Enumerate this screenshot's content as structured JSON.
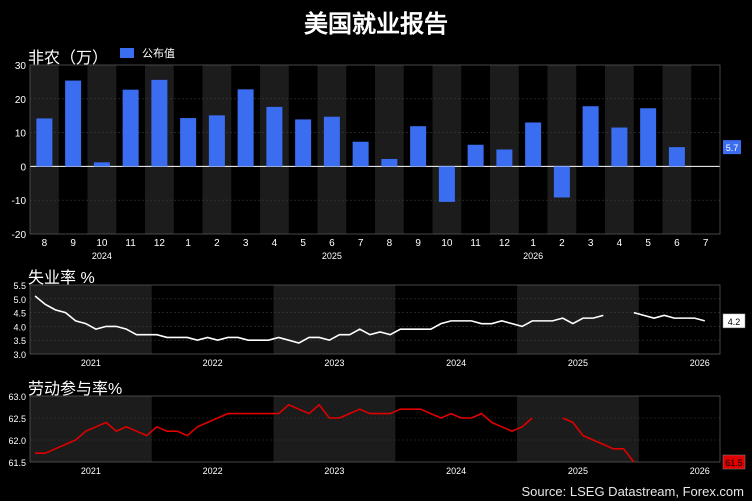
{
  "title": "美国就业报告",
  "source": "Source: LSEG Datastream, Forex.com",
  "colors": {
    "bg": "#000000",
    "panel_band": "#1c1c1c",
    "grid": "#3a3a3a",
    "bar": "#3a6df0",
    "unemployment_line": "#ffffff",
    "participation_line": "#e00000",
    "label_box_red": "#e00000"
  },
  "chart_data": [
    {
      "type": "bar",
      "title": "非农（万）",
      "legend": [
        "公布值"
      ],
      "legend_placement": "top-left",
      "categories": [
        "8",
        "9",
        "10",
        "11",
        "12",
        "1",
        "2",
        "3",
        "4",
        "5",
        "6",
        "7",
        "8",
        "9",
        "10",
        "11",
        "12",
        "1",
        "2",
        "3",
        "4",
        "5",
        "6",
        "7"
      ],
      "year_labels": [
        {
          "label": "2024",
          "at": "10"
        },
        {
          "label": "2025",
          "at": "6"
        },
        {
          "label": "2026",
          "at": "1"
        }
      ],
      "values": [
        14.2,
        25.4,
        1.2,
        22.7,
        25.6,
        14.3,
        15.1,
        22.8,
        17.6,
        13.9,
        14.7,
        7.3,
        2.2,
        11.9,
        -10.5,
        6.4,
        5.0,
        13.0,
        -9.2,
        17.8,
        11.5,
        17.2,
        5.7,
        null
      ],
      "ylim": [
        -20,
        30
      ],
      "yticks": [
        -20,
        -10,
        0,
        10,
        20,
        30
      ],
      "last_value_label": "5.7",
      "grid": true
    },
    {
      "type": "line",
      "title": "失业率 %",
      "x_labels": [
        "2021",
        "2022",
        "2023",
        "2024",
        "2025",
        "2026"
      ],
      "x_start": "2021-01",
      "values": [
        5.1,
        4.8,
        4.6,
        4.5,
        4.2,
        4.1,
        3.9,
        4.0,
        4.0,
        3.9,
        3.7,
        3.7,
        3.7,
        3.6,
        3.6,
        3.6,
        3.5,
        3.6,
        3.5,
        3.6,
        3.6,
        3.5,
        3.5,
        3.5,
        3.6,
        3.5,
        3.4,
        3.6,
        3.6,
        3.5,
        3.7,
        3.7,
        3.9,
        3.7,
        3.8,
        3.7,
        3.9,
        3.9,
        3.9,
        3.9,
        4.1,
        4.2,
        4.2,
        4.2,
        4.1,
        4.1,
        4.2,
        4.1,
        4.0,
        4.2,
        4.2,
        4.2,
        4.3,
        4.1,
        4.3,
        4.3,
        4.4,
        null,
        null,
        4.5,
        4.4,
        4.3,
        4.4,
        4.3,
        4.3,
        4.3,
        4.2
      ],
      "ylim": [
        3.0,
        5.5
      ],
      "yticks": [
        3.0,
        3.5,
        4.0,
        4.5,
        5.0,
        5.5
      ],
      "last_value_label": "4.2",
      "grid": true
    },
    {
      "type": "line",
      "title": "劳动参与率%",
      "x_labels": [
        "2021",
        "2022",
        "2023",
        "2024",
        "2025",
        "2026"
      ],
      "x_start": "2021-01",
      "values": [
        61.7,
        61.7,
        61.8,
        61.9,
        62.0,
        62.2,
        62.3,
        62.4,
        62.2,
        62.3,
        62.2,
        62.1,
        62.3,
        62.2,
        62.2,
        62.1,
        62.3,
        62.4,
        62.5,
        62.6,
        62.6,
        62.6,
        62.6,
        62.6,
        62.6,
        62.8,
        62.7,
        62.6,
        62.8,
        62.5,
        62.5,
        62.6,
        62.7,
        62.6,
        62.6,
        62.6,
        62.7,
        62.7,
        62.7,
        62.6,
        62.5,
        62.6,
        62.5,
        62.5,
        62.6,
        62.4,
        62.3,
        62.2,
        62.3,
        62.5,
        null,
        null,
        62.5,
        62.4,
        62.1,
        62.0,
        61.9,
        61.8,
        61.8,
        61.5
      ],
      "ylim": [
        61.5,
        63.0
      ],
      "yticks": [
        61.5,
        62.0,
        62.5,
        63.0
      ],
      "last_value_label": "61.5",
      "grid": true
    }
  ]
}
